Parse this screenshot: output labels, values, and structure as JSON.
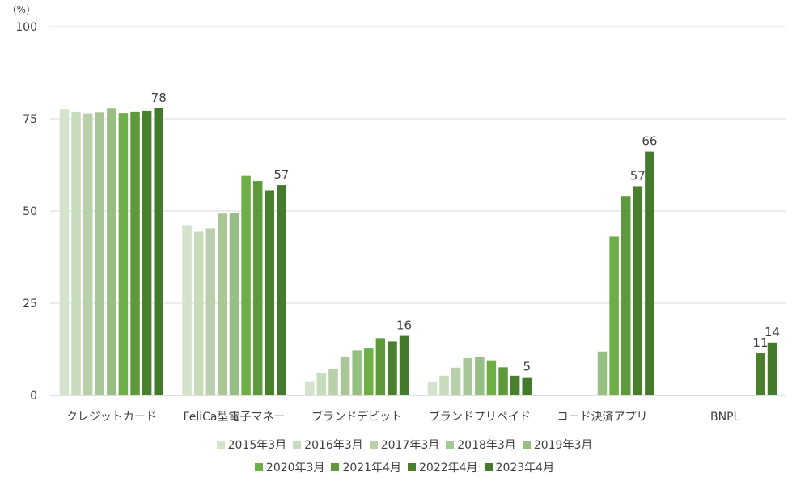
{
  "chart_data": {
    "type": "bar",
    "unit_label": "(%)",
    "ylim": [
      0,
      100
    ],
    "yticks": [
      0,
      25,
      50,
      75,
      100
    ],
    "categories": [
      "クレジットカード",
      "FeliCa型電子マネー",
      "ブランドデビット",
      "ブランドプリペイド",
      "コード決済アプリ",
      "BNPL"
    ],
    "series": [
      {
        "name": "2015年3月",
        "color": "#d5e3cc",
        "values": [
          77.6,
          46.2,
          3.8,
          3.5,
          null,
          null
        ]
      },
      {
        "name": "2016年3月",
        "color": "#c7dcbc",
        "values": [
          77.0,
          44.4,
          6.0,
          5.3,
          null,
          null
        ]
      },
      {
        "name": "2017年3月",
        "color": "#b9d1aa",
        "values": [
          76.4,
          45.3,
          7.2,
          7.5,
          null,
          null
        ]
      },
      {
        "name": "2018年3月",
        "color": "#a9c796",
        "values": [
          76.7,
          49.3,
          10.5,
          10.1,
          null,
          null
        ]
      },
      {
        "name": "2019年3月",
        "color": "#97bf84",
        "values": [
          77.8,
          49.5,
          12.2,
          10.4,
          11.9,
          null
        ]
      },
      {
        "name": "2020年3月",
        "color": "#6fad47",
        "values": [
          76.5,
          59.5,
          12.7,
          9.5,
          43.1,
          null
        ]
      },
      {
        "name": "2021年4月",
        "color": "#5e9a3c",
        "values": [
          77.0,
          58.1,
          15.5,
          7.6,
          53.9,
          null
        ]
      },
      {
        "name": "2022年4月",
        "color": "#4a7f2e",
        "values": [
          77.2,
          55.6,
          14.6,
          5.3,
          56.7,
          11.4
        ]
      },
      {
        "name": "2023年4月",
        "color": "#447a2b",
        "values": [
          77.9,
          57.0,
          16.1,
          4.9,
          66.1,
          14.3
        ]
      }
    ],
    "data_labels": [
      {
        "category": 0,
        "series": 8,
        "text": "78"
      },
      {
        "category": 1,
        "series": 8,
        "text": "57"
      },
      {
        "category": 2,
        "series": 8,
        "text": "16"
      },
      {
        "category": 3,
        "series": 8,
        "text": "5"
      },
      {
        "category": 4,
        "series": 7,
        "text": "57"
      },
      {
        "category": 4,
        "series": 8,
        "text": "66"
      },
      {
        "category": 5,
        "series": 7,
        "text": "11"
      },
      {
        "category": 5,
        "series": 8,
        "text": "14"
      }
    ],
    "legend_rows": [
      [
        0,
        1,
        2,
        3,
        4
      ],
      [
        5,
        6,
        7,
        8
      ]
    ],
    "grid": true
  }
}
